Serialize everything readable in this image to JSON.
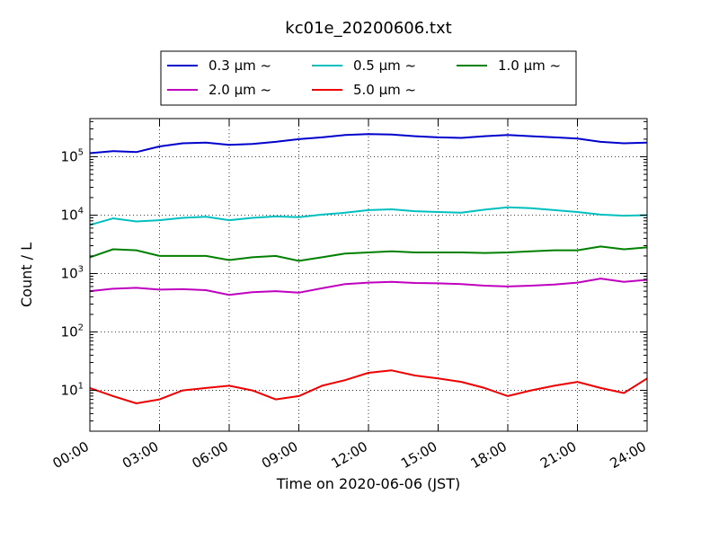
{
  "chart_data": {
    "type": "line",
    "title": "kc01e_20200606.txt",
    "xlabel": "Time on 2020-06-06 (JST)",
    "ylabel": "Count / L",
    "yscale": "log",
    "xlim": [
      "00:00",
      "24:00"
    ],
    "ylim": [
      2,
      450000
    ],
    "grid": true,
    "legend_position": "top-center",
    "x_ticks": [
      "00:00",
      "03:00",
      "06:00",
      "09:00",
      "12:00",
      "15:00",
      "18:00",
      "21:00",
      "24:00"
    ],
    "y_ticks": [
      {
        "base": "10",
        "exp": "1",
        "value": 10
      },
      {
        "base": "10",
        "exp": "2",
        "value": 100
      },
      {
        "base": "10",
        "exp": "3",
        "value": 1000
      },
      {
        "base": "10",
        "exp": "4",
        "value": 10000
      },
      {
        "base": "10",
        "exp": "5",
        "value": 100000
      }
    ],
    "x": [
      "00:00",
      "01:00",
      "02:00",
      "03:00",
      "04:00",
      "05:00",
      "06:00",
      "07:00",
      "08:00",
      "09:00",
      "10:00",
      "11:00",
      "12:00",
      "13:00",
      "14:00",
      "15:00",
      "16:00",
      "17:00",
      "18:00",
      "19:00",
      "20:00",
      "21:00",
      "22:00",
      "23:00",
      "24:00"
    ],
    "series": [
      {
        "name": "0.3 µm ~",
        "color": "#0000cc",
        "values": [
          115000,
          125000,
          120000,
          150000,
          170000,
          175000,
          160000,
          165000,
          180000,
          200000,
          215000,
          235000,
          245000,
          240000,
          225000,
          215000,
          210000,
          225000,
          235000,
          225000,
          215000,
          205000,
          180000,
          170000,
          175000
        ]
      },
      {
        "name": "0.5 µm ~",
        "color": "#00bfbf",
        "values": [
          6800,
          8800,
          7800,
          8200,
          9000,
          9400,
          8200,
          9000,
          9500,
          9200,
          10200,
          11000,
          12200,
          12600,
          11700,
          11300,
          11000,
          12400,
          13600,
          13200,
          12200,
          11300,
          10200,
          9800,
          10000
        ]
      },
      {
        "name": "1.0 µm ~",
        "color": "#008000",
        "values": [
          1900,
          2600,
          2500,
          2000,
          2000,
          2000,
          1700,
          1900,
          2000,
          1650,
          1900,
          2200,
          2300,
          2400,
          2300,
          2300,
          2300,
          2250,
          2300,
          2400,
          2500,
          2500,
          2900,
          2600,
          2800
        ]
      },
      {
        "name": "2.0 µm ~",
        "color": "#bf00bf",
        "values": [
          500,
          550,
          570,
          530,
          540,
          520,
          430,
          480,
          500,
          470,
          560,
          660,
          700,
          720,
          690,
          680,
          660,
          620,
          600,
          620,
          650,
          700,
          820,
          720,
          780
        ]
      },
      {
        "name": "5.0 µm ~",
        "color": "#ee0000",
        "values": [
          11,
          8,
          6,
          7,
          10,
          11,
          12,
          10,
          7,
          8,
          12,
          15,
          20,
          22,
          18,
          16,
          14,
          11,
          8,
          10,
          12,
          14,
          11,
          9,
          16
        ]
      }
    ]
  }
}
